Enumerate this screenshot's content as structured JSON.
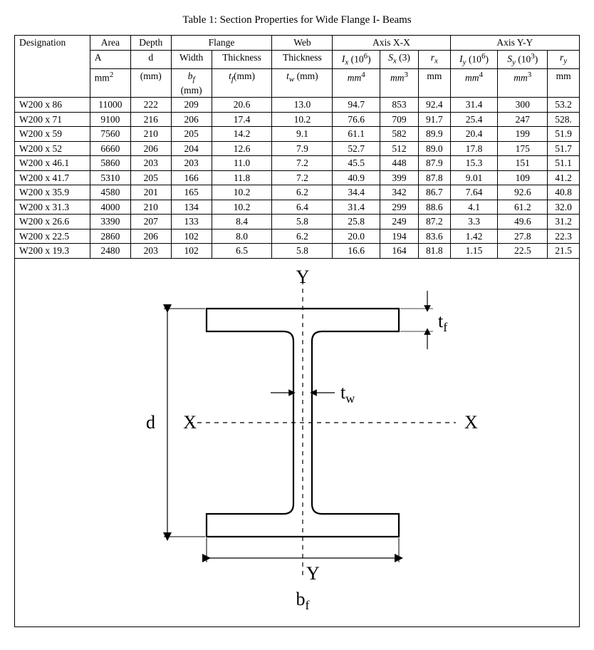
{
  "title": "Table 1: Section Properties for Wide Flange I- Beams",
  "header": {
    "designation": "Designation",
    "area": "Area",
    "depth": "Depth",
    "flange": "Flange",
    "web": "Web",
    "axis_xx": "Axis X-X",
    "axis_yy": "Axis Y-Y",
    "A": "A",
    "d": "d",
    "width": "Width",
    "thickness": "Thickness",
    "web_thickness": "Thickness",
    "Ix": "I",
    "Ix_sub": "x",
    "Ix_paren": " (10",
    "Ix_sup": "6",
    "Ix_close": ")",
    "Sx": "S",
    "Sx_sub": "x",
    "Sx_paren": " (3)",
    "rx": "r",
    "rx_sub": "x",
    "Iy": "I",
    "Iy_sub": "y",
    "Iy_paren": " (10",
    "Iy_sup": "6",
    "Iy_close": ")",
    "Sy": "S",
    "Sy_sub": "y",
    "Sy_paren": " (10",
    "Sy_sup": "3",
    "Sy_close": ")",
    "ry": "r",
    "ry_sub": "y",
    "u_mm2": "mm",
    "u_mm2_sup": "2",
    "u_mm": "(mm)",
    "bf": "b",
    "bf_sub": "f",
    "bf_unit": "(mm)",
    "tf": "t",
    "tf_sub": "f",
    "tf_unit": "(mm)",
    "tw": "t",
    "tw_sub": "w",
    "tw_unit": " (mm)",
    "u_mm4": "mm",
    "u_mm4_sup": "4",
    "u_mm3": "mm",
    "u_mm3_sup": "3",
    "u_mm_plain": "mm"
  },
  "rows": [
    {
      "d": "W200 x 86",
      "c": [
        "11000",
        "222",
        "209",
        "20.6",
        "13.0",
        "94.7",
        "853",
        "92.4",
        "31.4",
        "300",
        "53.2"
      ]
    },
    {
      "d": "W200 x 71",
      "c": [
        "9100",
        "216",
        "206",
        "17.4",
        "10.2",
        "76.6",
        "709",
        "91.7",
        "25.4",
        "247",
        "528."
      ]
    },
    {
      "d": "W200 x 59",
      "c": [
        "7560",
        "210",
        "205",
        "14.2",
        "9.1",
        "61.1",
        "582",
        "89.9",
        "20.4",
        "199",
        "51.9"
      ]
    },
    {
      "d": "W200 x 52",
      "c": [
        "6660",
        "206",
        "204",
        "12.6",
        "7.9",
        "52.7",
        "512",
        "89.0",
        "17.8",
        "175",
        "51.7"
      ]
    },
    {
      "d": "W200 x 46.1",
      "c": [
        "5860",
        "203",
        "203",
        "11.0",
        "7.2",
        "45.5",
        "448",
        "87.9",
        "15.3",
        "151",
        "51.1"
      ]
    },
    {
      "d": "W200 x 41.7",
      "c": [
        "5310",
        "205",
        "166",
        "11.8",
        "7.2",
        "40.9",
        "399",
        "87.8",
        "9.01",
        "109",
        "41.2"
      ]
    },
    {
      "d": "W200 x 35.9",
      "c": [
        "4580",
        "201",
        "165",
        "10.2",
        "6.2",
        "34.4",
        "342",
        "86.7",
        "7.64",
        "92.6",
        "40.8"
      ]
    },
    {
      "d": "W200  x 31.3",
      "c": [
        "4000",
        "210",
        "134",
        "10.2",
        "6.4",
        "31.4",
        "299",
        "88.6",
        "4.1",
        "61.2",
        "32.0"
      ]
    },
    {
      "d": "W200 x 26.6",
      "c": [
        "3390",
        "207",
        "133",
        "8.4",
        "5.8",
        "25.8",
        "249",
        "87.2",
        "3.3",
        "49.6",
        "31.2"
      ]
    },
    {
      "d": "W200 x 22.5",
      "c": [
        "2860",
        "206",
        "102",
        "8.0",
        "6.2",
        "20.0",
        "194",
        "83.6",
        "1.42",
        "27.8",
        "22.3"
      ]
    },
    {
      "d": "W200 x 19.3",
      "c": [
        "2480",
        "203",
        "102",
        "6.5",
        "5.8",
        "16.6",
        "164",
        "81.8",
        "1.15",
        "22.5",
        "21.5"
      ]
    }
  ],
  "diagram": {
    "labels": {
      "Y": "Y",
      "X": "X",
      "d": "d",
      "tf": "t",
      "tf_sub": "f",
      "tw": "t",
      "tw_sub": "w",
      "bf": "b",
      "bf_sub": "f"
    },
    "colors": {
      "stroke": "#000000",
      "bg": "#ffffff"
    },
    "line_width_outline": 2.2,
    "line_width_dim": 1.2,
    "dash": "6,6"
  },
  "colors": {
    "border": "#000000",
    "text": "#000000",
    "bg": "#ffffff"
  },
  "fonts": {
    "body_pt": 14,
    "title_pt": 15,
    "diagram_label_pt": 26
  }
}
